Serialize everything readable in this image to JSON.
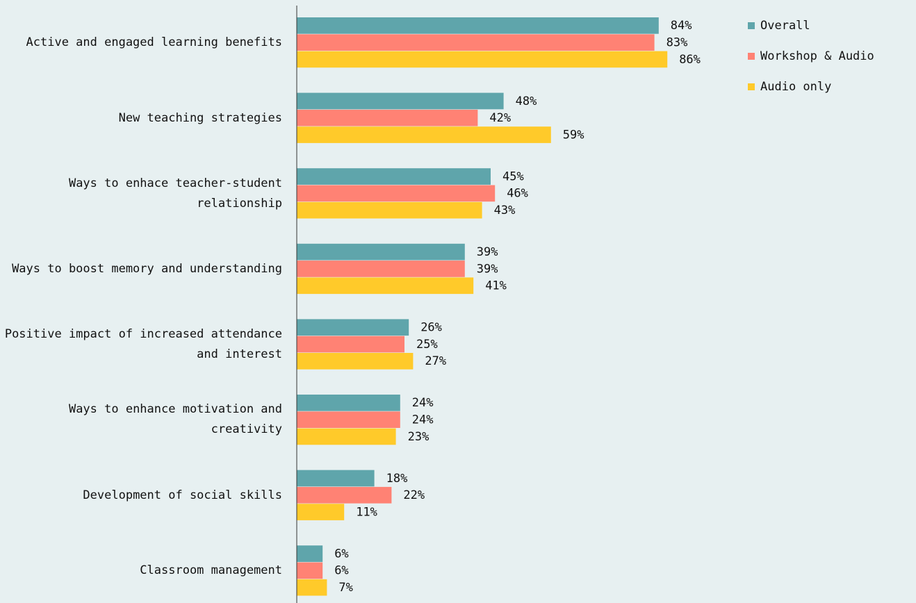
{
  "chart_data": {
    "type": "bar",
    "orientation": "horizontal",
    "categories": [
      "Active and engaged learning benefits",
      "New teaching strategies",
      "Ways to enhace teacher-student relationship",
      "Ways to boost memory and understanding",
      "Positive impact of increased attendance and interest",
      "Ways to enhance motivation and creativity",
      "Development of social skills",
      "Classroom management"
    ],
    "series": [
      {
        "name": "Overall",
        "color": "#5fa5ab",
        "values": [
          84,
          48,
          45,
          39,
          26,
          24,
          18,
          6
        ],
        "value_labels": [
          "84%",
          "48%",
          "45%",
          "39%",
          "26%",
          "24%",
          "18%",
          "6%"
        ]
      },
      {
        "name": "Workshop & Audio",
        "color": "#ff8274",
        "values": [
          83,
          42,
          46,
          39,
          25,
          24,
          22,
          6
        ],
        "value_labels": [
          "83%",
          "42%",
          "46%",
          "39%",
          "25%",
          "24%",
          "22%",
          "6%"
        ]
      },
      {
        "name": "Audio only",
        "color": "#ffca2a",
        "values": [
          86,
          59,
          43,
          41,
          27,
          23,
          11,
          7
        ],
        "value_labels": [
          "86%",
          "59%",
          "43%",
          "41%",
          "27%",
          "23%",
          "11%",
          "7%"
        ]
      }
    ],
    "legend": "top-right"
  }
}
